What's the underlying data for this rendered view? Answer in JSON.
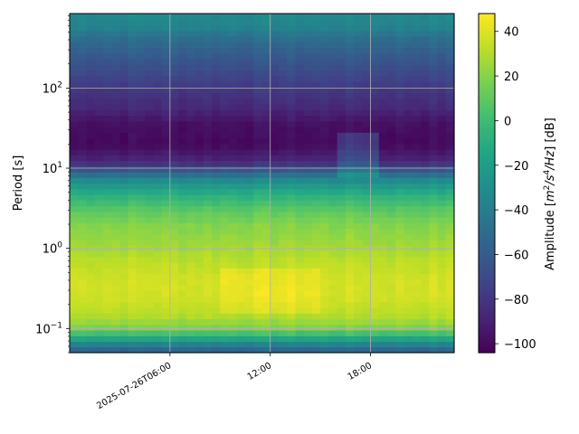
{
  "chart_data": {
    "type": "heatmap",
    "title": "",
    "xlabel": "",
    "ylabel": "Period [s]",
    "colorbar_label": "Amplitude [m²/s⁴/Hz] [dB]",
    "colorbar_label_parts": {
      "prefix": "Amplitude [",
      "m": "m",
      "m_exp": "2",
      "s": "/s",
      "s_exp": "4",
      "hz": "/Hz",
      "suffix": "] [dB]"
    },
    "colormap": "viridis",
    "y_scale": "log",
    "ylim": [
      0.05,
      850
    ],
    "y_ticks": [
      {
        "value": 0.1,
        "base": "10",
        "exp": "−1"
      },
      {
        "value": 1,
        "base": "10",
        "exp": "0"
      },
      {
        "value": 10,
        "base": "10",
        "exp": "1"
      },
      {
        "value": 100,
        "base": "10",
        "exp": "2"
      }
    ],
    "x_range_hours": [
      0,
      23
    ],
    "x_ticks": [
      {
        "value": 6,
        "label": "2025-07-26T06:00"
      },
      {
        "value": 12,
        "label": "12:00"
      },
      {
        "value": 18,
        "label": "18:00"
      }
    ],
    "clim": [
      -104,
      48
    ],
    "colorbar_ticks": [
      40,
      20,
      0,
      -20,
      -40,
      -60,
      -80,
      -100
    ],
    "grid": true,
    "period_profile": [
      {
        "period": 0.05,
        "db": -62
      },
      {
        "period": 0.06,
        "db": -45
      },
      {
        "period": 0.075,
        "db": -15
      },
      {
        "period": 0.1,
        "db": 18
      },
      {
        "period": 0.15,
        "db": 32
      },
      {
        "period": 0.25,
        "db": 38
      },
      {
        "period": 0.4,
        "db": 38
      },
      {
        "period": 0.7,
        "db": 33
      },
      {
        "period": 1,
        "db": 28
      },
      {
        "period": 2,
        "db": 20
      },
      {
        "period": 3,
        "db": 10
      },
      {
        "period": 5,
        "db": -10
      },
      {
        "period": 7,
        "db": -30
      },
      {
        "period": 9,
        "db": -55
      },
      {
        "period": 12,
        "db": -85
      },
      {
        "period": 20,
        "db": -100
      },
      {
        "period": 35,
        "db": -97
      },
      {
        "period": 60,
        "db": -85
      },
      {
        "period": 100,
        "db": -78
      },
      {
        "period": 200,
        "db": -65
      },
      {
        "period": 400,
        "db": -50
      },
      {
        "period": 600,
        "db": -35
      },
      {
        "period": 850,
        "db": -32
      }
    ],
    "time_features": [
      {
        "hour_start": 9,
        "hour_end": 15,
        "period_min": 0.15,
        "period_max": 0.6,
        "db_offset": 6
      },
      {
        "hour_start": 16.2,
        "hour_end": 18.5,
        "period_min": 8,
        "period_max": 30,
        "db_offset": 20
      }
    ]
  }
}
